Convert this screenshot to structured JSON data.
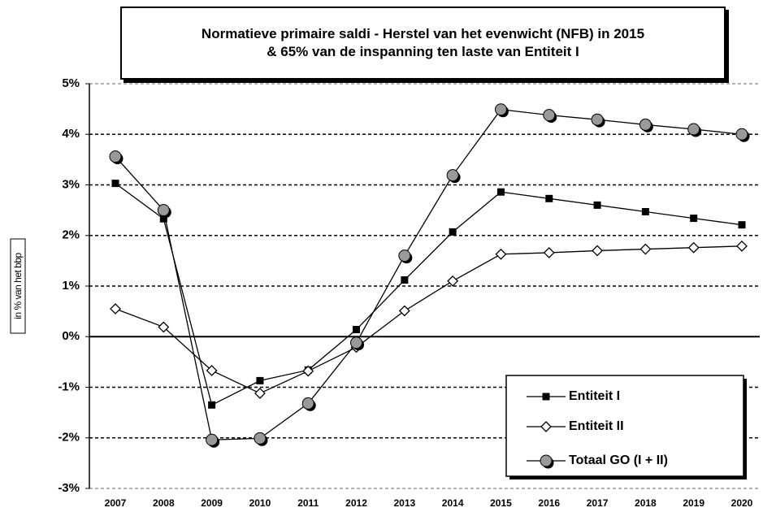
{
  "chart_data": {
    "type": "line",
    "title": [
      "Normatieve primaire saldi - Herstel van het evenwicht (NFB) in 2015",
      "& 65% van de inspanning ten laste van Entiteit I"
    ],
    "y_label": "in % van het bbp",
    "categories": [
      "2007",
      "2008",
      "2009",
      "2010",
      "2011",
      "2012",
      "2013",
      "2014",
      "2015",
      "2016",
      "2017",
      "2018",
      "2019",
      "2020"
    ],
    "series": [
      {
        "name": "Entiteit I",
        "color": "#000000",
        "marker": "square",
        "values": [
          3.03,
          2.33,
          -1.35,
          -0.87,
          -0.66,
          0.14,
          1.12,
          2.07,
          2.86,
          2.73,
          2.6,
          2.47,
          2.34,
          2.21
        ]
      },
      {
        "name": "Entiteit II",
        "color": "#000000",
        "marker": "diamond",
        "values": [
          0.55,
          0.19,
          -0.67,
          -1.12,
          -0.68,
          -0.21,
          0.51,
          1.1,
          1.63,
          1.66,
          1.7,
          1.73,
          1.76,
          1.79
        ]
      },
      {
        "name": "Totaal GO (I + II)",
        "color": "#000000",
        "marker": "circle",
        "values": [
          3.56,
          2.5,
          -2.04,
          -2.01,
          -1.32,
          -0.12,
          1.6,
          3.19,
          4.49,
          4.38,
          4.29,
          4.19,
          4.1,
          4.0
        ]
      }
    ],
    "ylim": [
      -3,
      5
    ],
    "yticks": [
      {
        "value": -3,
        "label": "-3%"
      },
      {
        "value": -2,
        "label": "-2%"
      },
      {
        "value": -1,
        "label": "-1%"
      },
      {
        "value": 0,
        "label": "0%"
      },
      {
        "value": 1,
        "label": "1%"
      },
      {
        "value": 2,
        "label": "2%"
      },
      {
        "value": 3,
        "label": "3%"
      },
      {
        "value": 4,
        "label": "4%"
      },
      {
        "value": 5,
        "label": "5%"
      }
    ],
    "grid": true,
    "legend": "lower right"
  }
}
